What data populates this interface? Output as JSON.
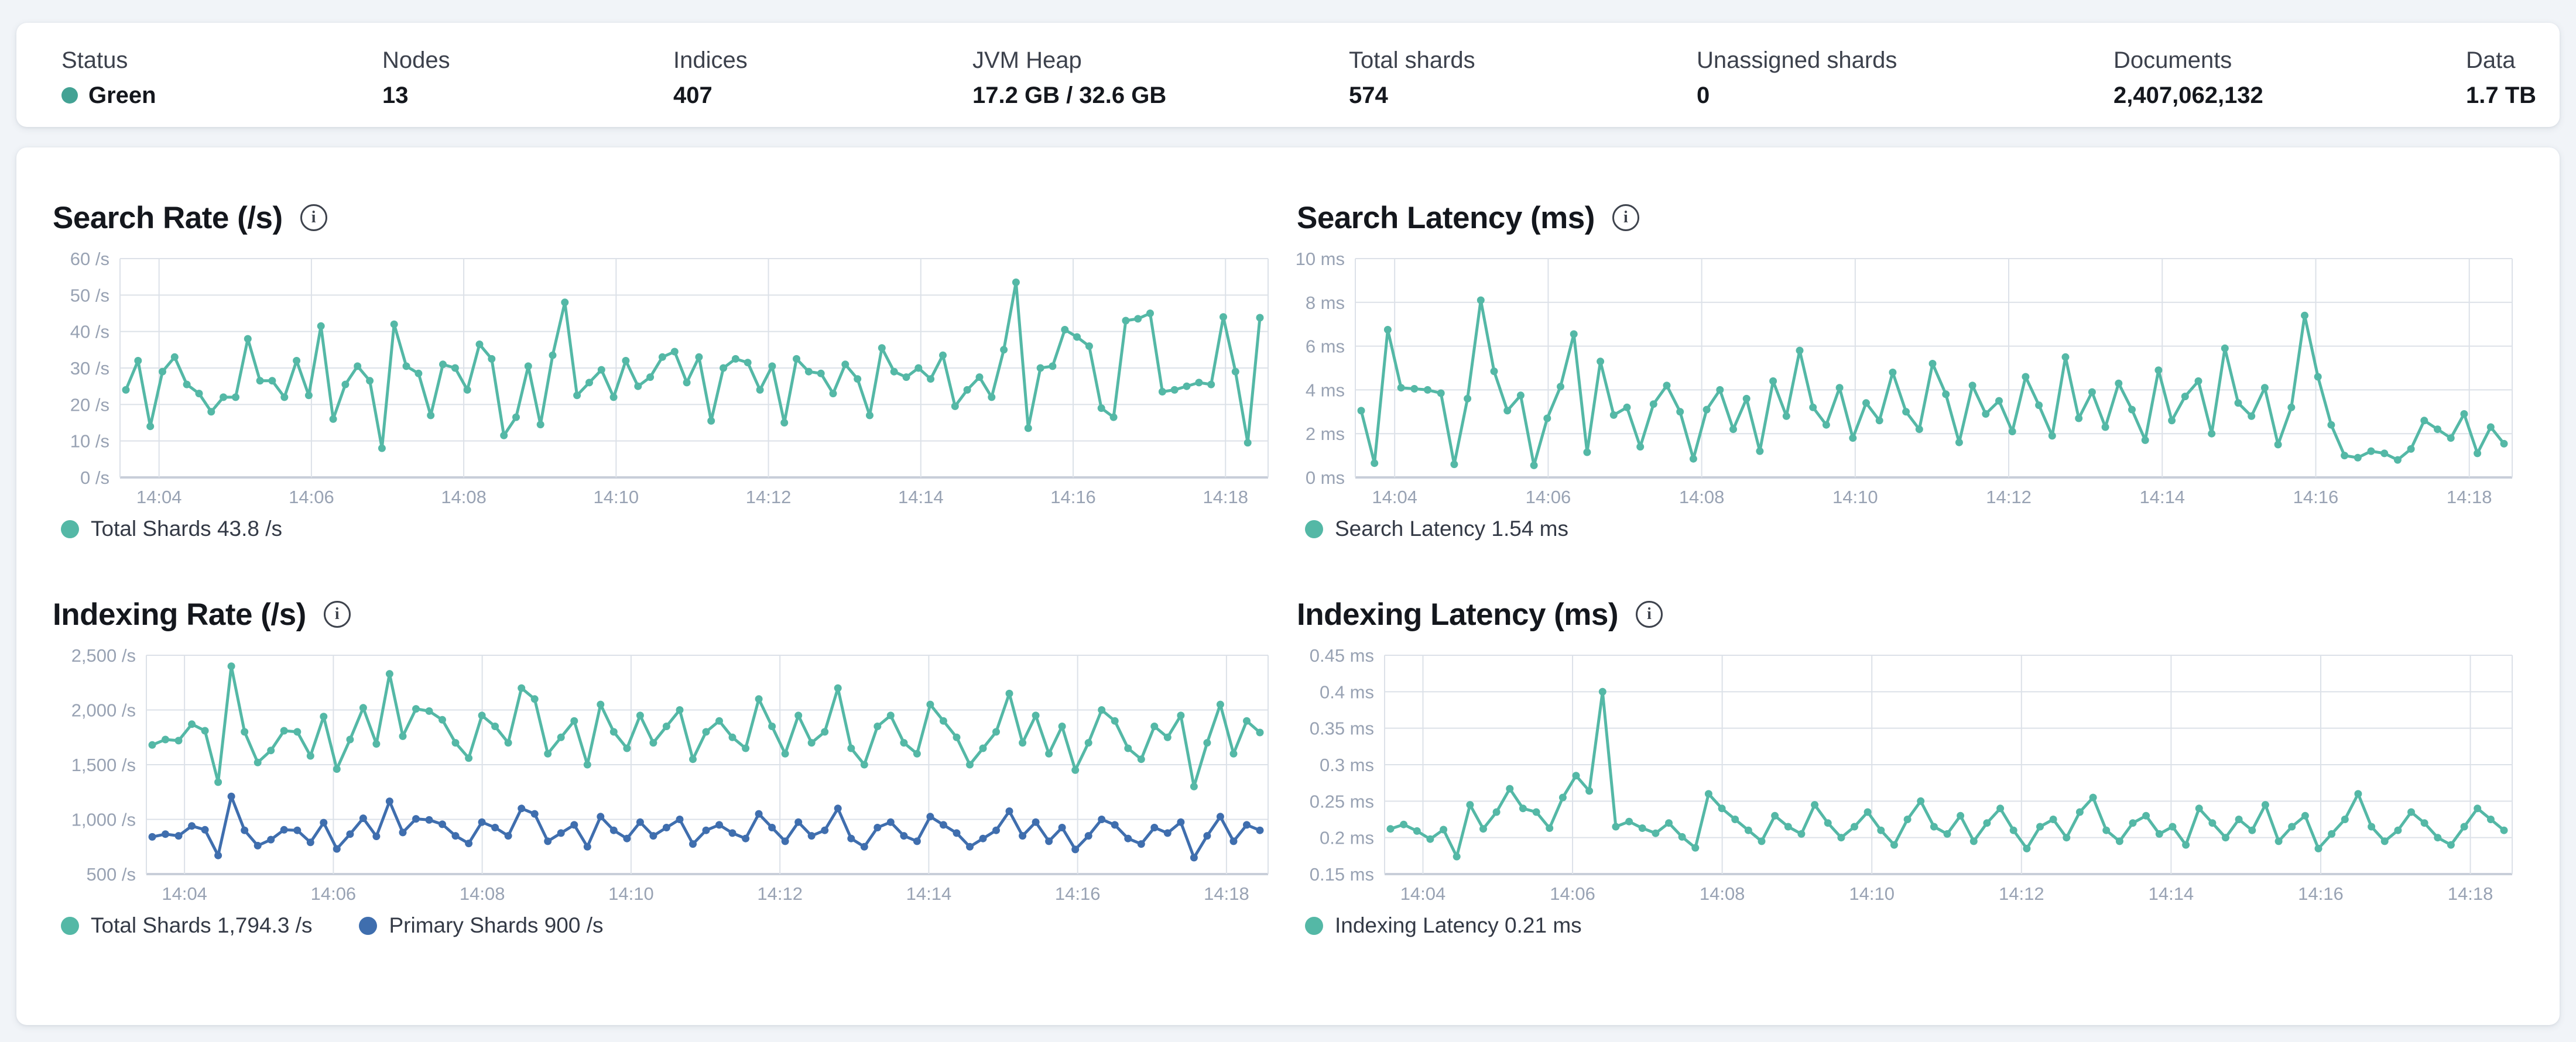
{
  "colors": {
    "teal": "#54b8a6",
    "blue": "#3f6eae",
    "status_green": "#43a294",
    "grid": "#dce1e8",
    "axis": "#c8ced9",
    "tick_text": "#98a2b3"
  },
  "summary": {
    "items": [
      {
        "label": "Status",
        "value": "Green"
      },
      {
        "label": "Nodes",
        "value": "13"
      },
      {
        "label": "Indices",
        "value": "407"
      },
      {
        "label": "JVM Heap",
        "value": "17.2 GB / 32.6 GB"
      },
      {
        "label": "Total shards",
        "value": "574"
      },
      {
        "label": "Unassigned shards",
        "value": "0"
      },
      {
        "label": "Documents",
        "value": "2,407,062,132"
      },
      {
        "label": "Data",
        "value": "1.7 TB"
      }
    ]
  },
  "charts": [
    {
      "type": "line",
      "title": "Search Rate (/s)",
      "y_min": 0,
      "y_max": 60,
      "y_ticks": [
        {
          "value": 0,
          "label": "0 /s"
        },
        {
          "value": 10,
          "label": "10 /s"
        },
        {
          "value": 20,
          "label": "20 /s"
        },
        {
          "value": 30,
          "label": "30 /s"
        },
        {
          "value": 40,
          "label": "40 /s"
        },
        {
          "value": 50,
          "label": "50 /s"
        },
        {
          "value": 60,
          "label": "60 /s"
        }
      ],
      "x_ticks": [
        "14:04",
        "14:06",
        "14:08",
        "14:10",
        "14:12",
        "14:14",
        "14:16",
        "14:18"
      ],
      "legend": [
        {
          "label": "Total Shards 43.8 /s"
        }
      ],
      "series": [
        {
          "name": "Total Shards",
          "current": "43.8 /s",
          "color": "#54b8a6",
          "values": [
            24,
            32,
            14,
            29,
            33,
            25.5,
            23,
            18,
            22,
            22,
            38,
            26.5,
            26.5,
            22,
            32,
            22.5,
            41.5,
            16,
            25.5,
            30.5,
            26.5,
            8,
            42,
            30.5,
            28.5,
            17,
            31,
            30,
            24,
            36.5,
            32.5,
            11.5,
            16.5,
            30.5,
            14.5,
            33.5,
            48,
            22.5,
            26,
            29.5,
            22,
            32,
            25,
            27.5,
            33,
            34.5,
            26,
            33,
            15.5,
            30,
            32.5,
            31.5,
            24,
            30.5,
            15,
            32.5,
            29,
            28.5,
            23,
            31,
            27,
            17,
            35.5,
            29,
            27.5,
            30,
            27,
            33.5,
            19.5,
            24,
            27.5,
            22,
            35,
            53.5,
            13.5,
            30,
            30.5,
            40.5,
            38.5,
            36,
            19,
            16.5,
            43,
            43.5,
            45,
            23.5,
            24,
            25,
            26,
            25.5,
            44,
            29,
            9.5,
            43.8
          ]
        }
      ]
    },
    {
      "type": "line",
      "title": "Search Latency (ms)",
      "y_min": 0,
      "y_max": 10,
      "y_ticks": [
        {
          "value": 0,
          "label": "0 ms"
        },
        {
          "value": 2,
          "label": "2 ms"
        },
        {
          "value": 4,
          "label": "4 ms"
        },
        {
          "value": 6,
          "label": "6 ms"
        },
        {
          "value": 8,
          "label": "8 ms"
        },
        {
          "value": 10,
          "label": "10 ms"
        }
      ],
      "x_ticks": [
        "14:04",
        "14:06",
        "14:08",
        "14:10",
        "14:12",
        "14:14",
        "14:16",
        "14:18"
      ],
      "legend": [
        {
          "label": "Search Latency 1.54 ms"
        }
      ],
      "series": [
        {
          "name": "Search Latency",
          "current": "1.54 ms",
          "color": "#54b8a6",
          "values": [
            3.05,
            0.65,
            6.75,
            4.1,
            4.05,
            4.0,
            3.85,
            0.6,
            3.6,
            8.1,
            4.85,
            3.05,
            3.75,
            0.55,
            2.7,
            4.15,
            6.55,
            1.15,
            5.3,
            2.85,
            3.2,
            1.4,
            3.35,
            4.2,
            3.0,
            0.85,
            3.1,
            4.0,
            2.2,
            3.6,
            1.2,
            4.4,
            2.8,
            5.8,
            3.2,
            2.4,
            4.1,
            1.8,
            3.4,
            2.6,
            4.8,
            3.0,
            2.2,
            5.2,
            3.8,
            1.6,
            4.2,
            2.9,
            3.5,
            2.1,
            4.6,
            3.3,
            1.9,
            5.5,
            2.7,
            3.9,
            2.3,
            4.3,
            3.1,
            1.7,
            4.9,
            2.6,
            3.7,
            4.4,
            2.0,
            5.9,
            3.4,
            2.8,
            4.1,
            1.5,
            3.2,
            7.4,
            4.6,
            2.4,
            1.0,
            0.9,
            1.2,
            1.1,
            0.8,
            1.3,
            2.6,
            2.2,
            1.8,
            2.9,
            1.1,
            2.3,
            1.54
          ]
        }
      ]
    },
    {
      "type": "line",
      "title": "Indexing Rate (/s)",
      "y_min": 500,
      "y_max": 2500,
      "y_ticks": [
        {
          "value": 500,
          "label": "500 /s"
        },
        {
          "value": 1000,
          "label": "1,000 /s"
        },
        {
          "value": 1500,
          "label": "1,500 /s"
        },
        {
          "value": 2000,
          "label": "2,000 /s"
        },
        {
          "value": 2500,
          "label": "2,500 /s"
        }
      ],
      "x_ticks": [
        "14:04",
        "14:06",
        "14:08",
        "14:10",
        "14:12",
        "14:14",
        "14:16",
        "14:18"
      ],
      "legend": [
        {
          "label": "Total Shards 1,794.3 /s"
        },
        {
          "label": "Primary Shards 900 /s"
        }
      ],
      "series": [
        {
          "name": "Total Shards",
          "current": "1,794.3 /s",
          "color": "#54b8a6",
          "values": [
            1680,
            1730,
            1720,
            1870,
            1810,
            1340,
            2400,
            1800,
            1520,
            1630,
            1810,
            1800,
            1580,
            1940,
            1460,
            1730,
            2020,
            1690,
            2330,
            1760,
            2010,
            1990,
            1910,
            1700,
            1560,
            1950,
            1850,
            1700,
            2200,
            2100,
            1600,
            1750,
            1900,
            1500,
            2050,
            1800,
            1650,
            1950,
            1700,
            1850,
            2000,
            1550,
            1800,
            1900,
            1750,
            1650,
            2100,
            1850,
            1600,
            1950,
            1700,
            1800,
            2200,
            1650,
            1500,
            1850,
            1950,
            1700,
            1600,
            2050,
            1900,
            1750,
            1500,
            1650,
            1800,
            2150,
            1700,
            1950,
            1600,
            1850,
            1450,
            1700,
            2000,
            1900,
            1650,
            1550,
            1850,
            1750,
            1950,
            1300,
            1700,
            2050,
            1600,
            1900,
            1794.3
          ]
        },
        {
          "name": "Primary Shards",
          "current": "900 /s",
          "color": "#3f6eae",
          "values": [
            840,
            865,
            850,
            940,
            905,
            670,
            1210,
            900,
            760,
            815,
            905,
            900,
            790,
            970,
            730,
            865,
            1010,
            845,
            1165,
            880,
            1005,
            995,
            955,
            850,
            780,
            975,
            925,
            850,
            1100,
            1050,
            800,
            875,
            950,
            750,
            1025,
            900,
            825,
            975,
            850,
            925,
            1000,
            775,
            900,
            950,
            875,
            825,
            1050,
            925,
            800,
            975,
            850,
            900,
            1100,
            825,
            750,
            925,
            975,
            850,
            800,
            1025,
            950,
            875,
            750,
            825,
            900,
            1075,
            850,
            975,
            800,
            925,
            725,
            850,
            1000,
            950,
            825,
            775,
            925,
            875,
            975,
            650,
            850,
            1025,
            800,
            950,
            900
          ]
        }
      ]
    },
    {
      "type": "line",
      "title": "Indexing Latency (ms)",
      "y_min": 0.15,
      "y_max": 0.45,
      "y_ticks": [
        {
          "value": 0.15,
          "label": "0.15 ms"
        },
        {
          "value": 0.2,
          "label": "0.2 ms"
        },
        {
          "value": 0.25,
          "label": "0.25 ms"
        },
        {
          "value": 0.3,
          "label": "0.3 ms"
        },
        {
          "value": 0.35,
          "label": "0.35 ms"
        },
        {
          "value": 0.4,
          "label": "0.4 ms"
        },
        {
          "value": 0.45,
          "label": "0.45 ms"
        }
      ],
      "x_ticks": [
        "14:04",
        "14:06",
        "14:08",
        "14:10",
        "14:12",
        "14:14",
        "14:16",
        "14:18"
      ],
      "legend": [
        {
          "label": "Indexing Latency 0.21 ms"
        }
      ],
      "series": [
        {
          "name": "Indexing Latency",
          "current": "0.21 ms",
          "color": "#54b8a6",
          "values": [
            0.212,
            0.218,
            0.209,
            0.198,
            0.211,
            0.174,
            0.245,
            0.212,
            0.235,
            0.267,
            0.24,
            0.235,
            0.213,
            0.255,
            0.285,
            0.264,
            0.4,
            0.215,
            0.222,
            0.213,
            0.206,
            0.22,
            0.201,
            0.186,
            0.26,
            0.24,
            0.225,
            0.21,
            0.195,
            0.23,
            0.215,
            0.205,
            0.245,
            0.22,
            0.2,
            0.215,
            0.235,
            0.21,
            0.19,
            0.225,
            0.25,
            0.215,
            0.205,
            0.23,
            0.195,
            0.22,
            0.24,
            0.21,
            0.185,
            0.215,
            0.225,
            0.2,
            0.235,
            0.255,
            0.21,
            0.195,
            0.22,
            0.23,
            0.205,
            0.215,
            0.19,
            0.24,
            0.22,
            0.2,
            0.225,
            0.21,
            0.245,
            0.195,
            0.215,
            0.23,
            0.185,
            0.205,
            0.225,
            0.26,
            0.215,
            0.195,
            0.21,
            0.235,
            0.22,
            0.2,
            0.19,
            0.215,
            0.24,
            0.225,
            0.21
          ]
        }
      ]
    }
  ]
}
